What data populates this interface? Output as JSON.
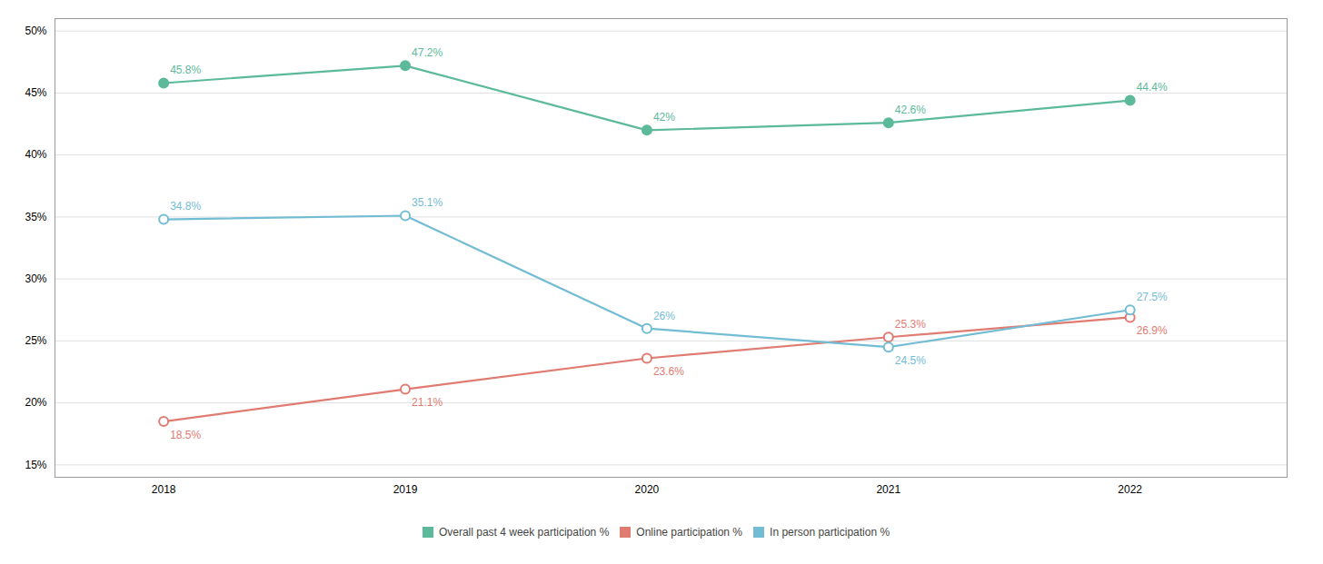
{
  "chart_data": {
    "type": "line",
    "x": [
      2018,
      2019,
      2020,
      2021,
      2022
    ],
    "xlim": [
      2017.55,
      2022.65
    ],
    "xticks": [
      2018,
      2019,
      2020,
      2021,
      2022
    ],
    "ylim": [
      14,
      51
    ],
    "yticks": [
      {
        "value": 15,
        "label": "15%"
      },
      {
        "value": 20,
        "label": "20%"
      },
      {
        "value": 25,
        "label": "25%"
      },
      {
        "value": 30,
        "label": "30%"
      },
      {
        "value": 35,
        "label": "35%"
      },
      {
        "value": 40,
        "label": "40%"
      },
      {
        "value": 45,
        "label": "45%"
      },
      {
        "value": 50,
        "label": "50%"
      }
    ],
    "grid": true,
    "legend": "bottom",
    "data_labels": true,
    "series": [
      {
        "name": "Overall past 4 week participation %",
        "color": "#5cb99a",
        "marker": "circle",
        "values": [
          45.8,
          47.2,
          42.0,
          42.6,
          44.4
        ],
        "value_labels": [
          "45.8%",
          "47.2%",
          "42%",
          "42.6%",
          "44.4%"
        ]
      },
      {
        "name": "Online participation %",
        "color": "#e07b72",
        "marker": "hollow",
        "values": [
          18.5,
          21.1,
          23.6,
          25.3,
          26.9
        ],
        "value_labels": [
          "18.5%",
          "21.1%",
          "23.6%",
          "25.3%",
          "26.9%"
        ]
      },
      {
        "name": "In person participation %",
        "color": "#72bcd4",
        "marker": "hollow",
        "values": [
          34.8,
          35.1,
          26.0,
          24.5,
          27.5
        ],
        "value_labels": [
          "34.8%",
          "35.1%",
          "26%",
          "24.5%",
          "27.5%"
        ]
      }
    ]
  }
}
